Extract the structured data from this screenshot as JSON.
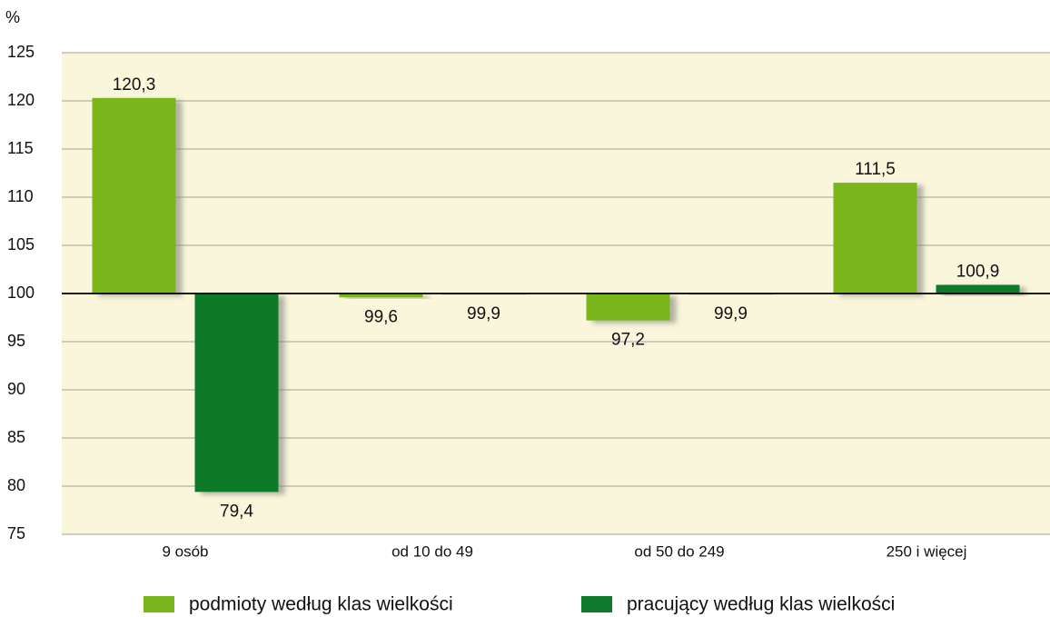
{
  "chart_data": {
    "type": "bar",
    "ylabel": "%",
    "categories": [
      "9 osób",
      "od 10 do 49",
      "od 50 do 249",
      "250 i więcej"
    ],
    "series": [
      {
        "name": "podmioty według klas wielkości",
        "color": "#7ab51d",
        "values": [
          120.3,
          99.6,
          97.2,
          111.5
        ],
        "value_labels": [
          "120,3",
          "99,6",
          "97,2",
          "111,5"
        ]
      },
      {
        "name": "pracujący według klas wielkości",
        "color": "#0e7a2c",
        "values": [
          79.4,
          99.9,
          99.9,
          100.9
        ],
        "value_labels": [
          "79,4",
          "99,9",
          "99,9",
          "100,9"
        ]
      }
    ],
    "ylim": [
      75,
      125
    ],
    "yticks": [
      75,
      80,
      85,
      90,
      95,
      100,
      105,
      110,
      115,
      120,
      125
    ],
    "baseline": 100,
    "grid": true,
    "legend": "bottom"
  }
}
